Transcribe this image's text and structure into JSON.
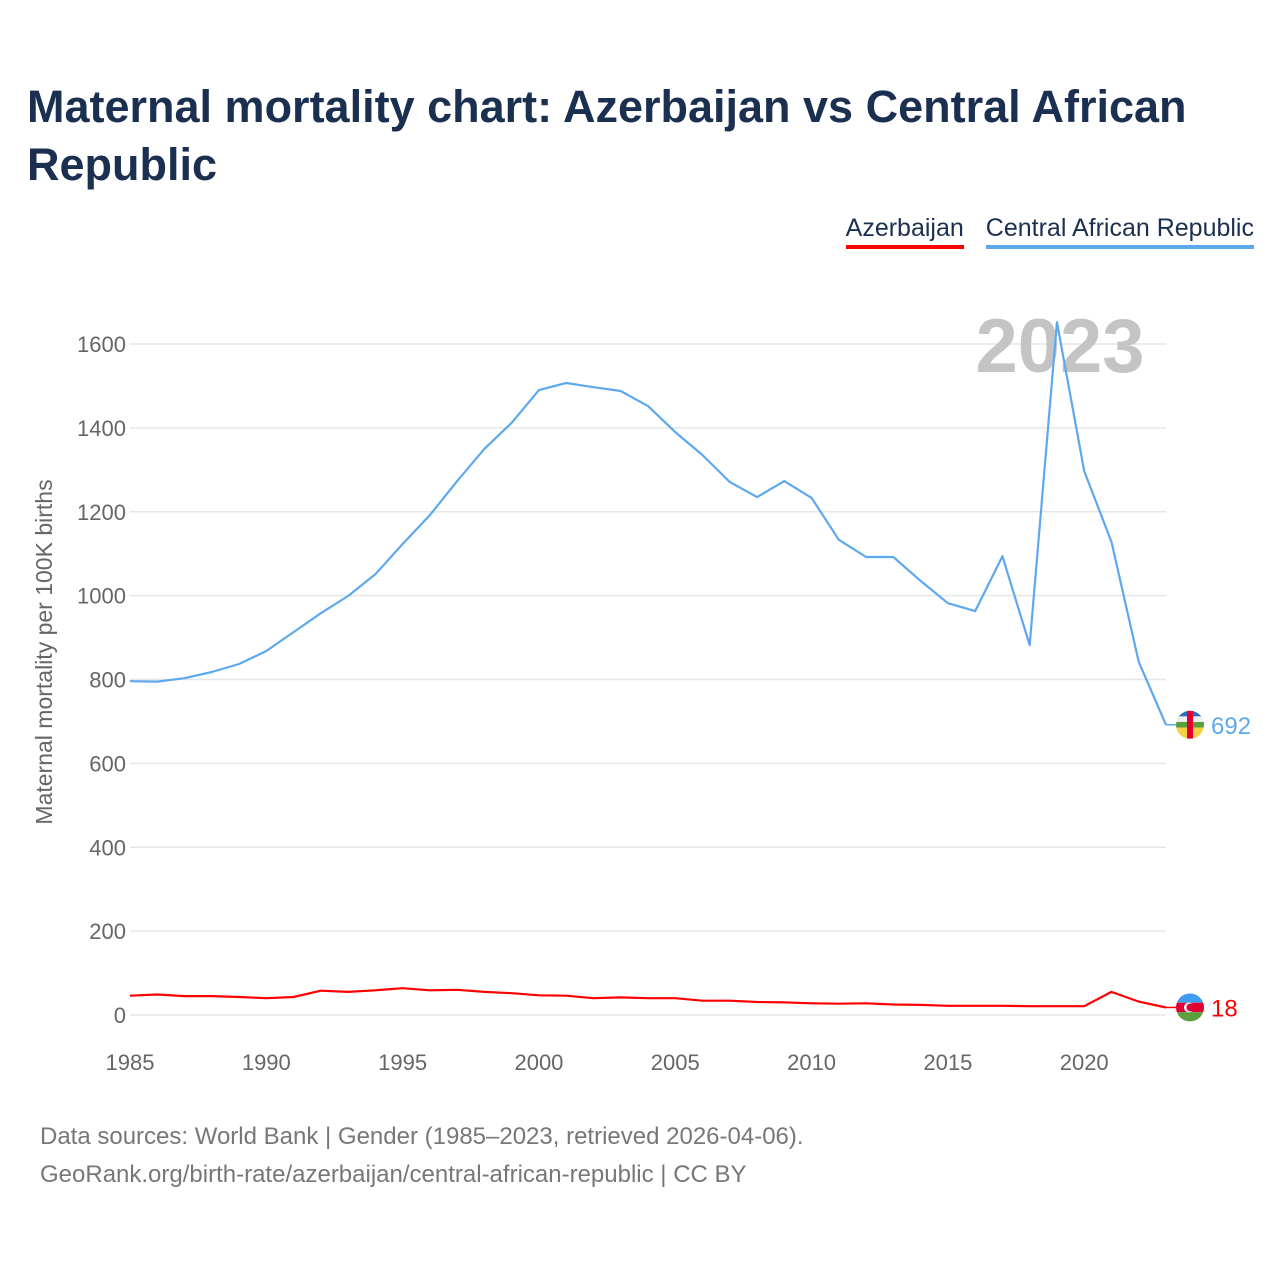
{
  "title": "Maternal mortality chart: Azerbaijan vs Central African Republic",
  "footer": {
    "line1": "Data sources: World Bank | Gender (1985–2023, retrieved 2026-04-06).",
    "line2": "GeoRank.org/birth-rate/azerbaijan/central-african-republic | CC BY"
  },
  "chart_data": {
    "type": "line",
    "title": "Maternal mortality chart: Azerbaijan vs Central African Republic",
    "xlabel": "",
    "ylabel": "Maternal mortality per 100K births",
    "year_label": "2023",
    "xlim": [
      1985,
      2023
    ],
    "ylim": [
      0,
      1650
    ],
    "x_ticks": [
      1985,
      1990,
      1995,
      2000,
      2005,
      2010,
      2015,
      2020
    ],
    "y_ticks": [
      0,
      200,
      400,
      600,
      800,
      1000,
      1200,
      1400,
      1600
    ],
    "grid": true,
    "legend_placement": "top-right",
    "x": [
      1985,
      1986,
      1987,
      1988,
      1989,
      1990,
      1991,
      1992,
      1993,
      1994,
      1995,
      1996,
      1997,
      1998,
      1999,
      2000,
      2001,
      2002,
      2003,
      2004,
      2005,
      2006,
      2007,
      2008,
      2009,
      2010,
      2011,
      2012,
      2013,
      2014,
      2015,
      2016,
      2017,
      2018,
      2019,
      2020,
      2021,
      2022,
      2023
    ],
    "series": [
      {
        "name": "Azerbaijan",
        "color": "#ff0000",
        "end_label": "18",
        "values": [
          46,
          49,
          45,
          45,
          43,
          40,
          43,
          58,
          55,
          59,
          64,
          59,
          60,
          55,
          52,
          47,
          46,
          40,
          42,
          40,
          40,
          34,
          34,
          31,
          30,
          28,
          27,
          28,
          25,
          24,
          22,
          22,
          22,
          21,
          21,
          21,
          55,
          32,
          18
        ]
      },
      {
        "name": "Central African Republic",
        "color": "#5ea8ee",
        "end_label": "692",
        "values": [
          796,
          795,
          803,
          818,
          837,
          868,
          913,
          958,
          999,
          1051,
          1123,
          1192,
          1273,
          1350,
          1412,
          1490,
          1507,
          1497,
          1488,
          1452,
          1390,
          1335,
          1271,
          1235,
          1273,
          1233,
          1133,
          1092,
          1092,
          1035,
          982,
          963,
          1094,
          882,
          1652,
          1297,
          1128,
          842,
          692
        ]
      }
    ]
  }
}
